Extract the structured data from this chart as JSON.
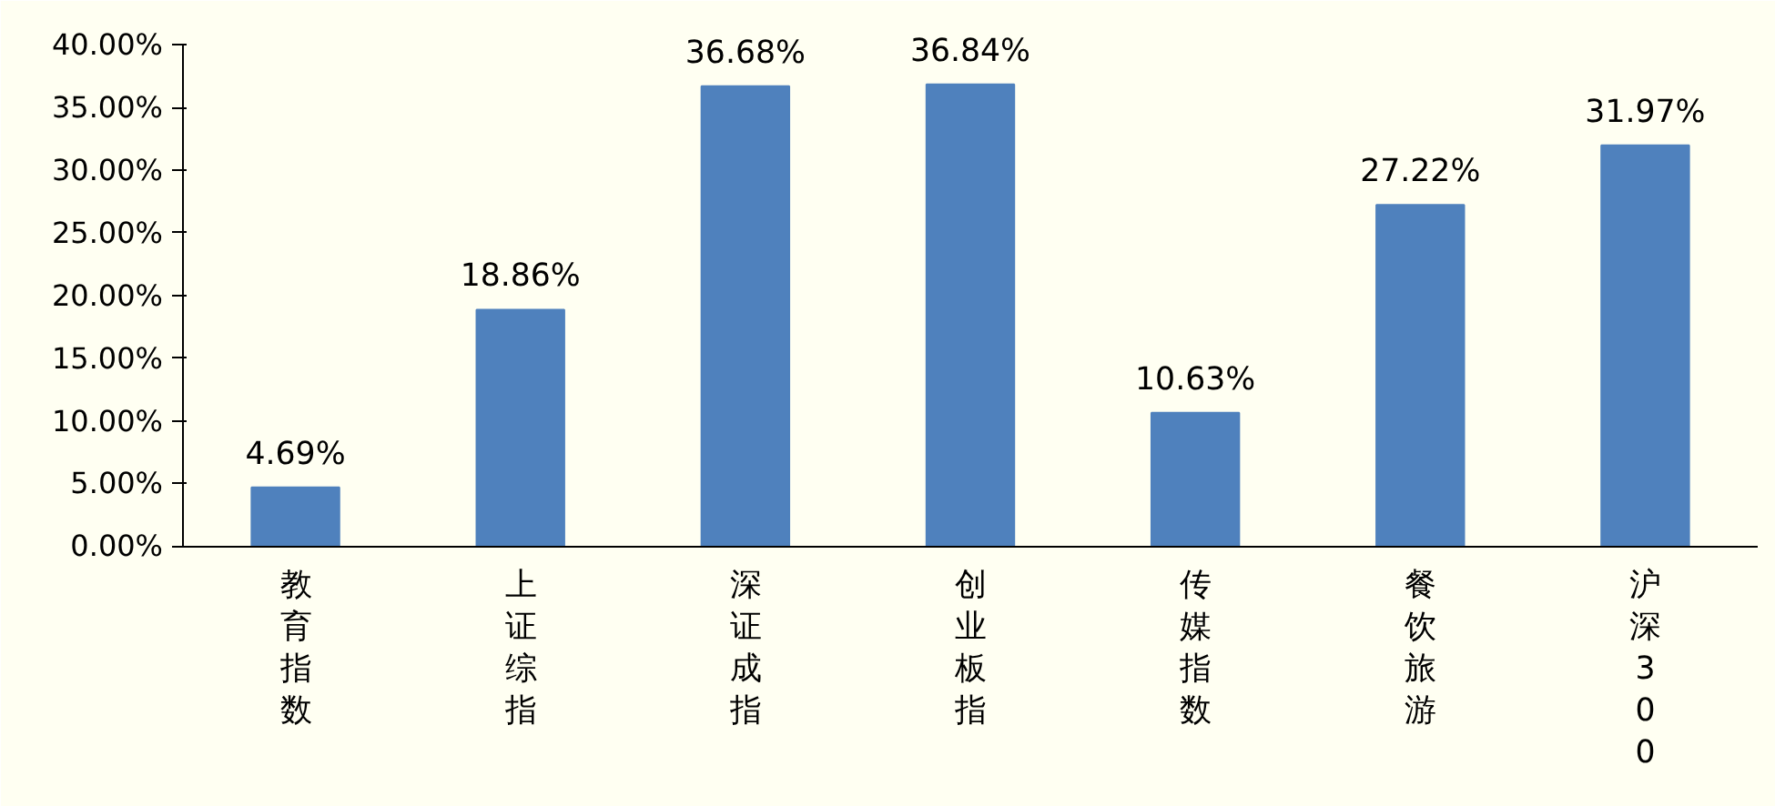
{
  "chart_data": {
    "type": "bar",
    "categories": [
      "教育指数",
      "上证综指",
      "深证成指",
      "创业板指",
      "传媒指数",
      "餐饮旅游",
      "沪深300"
    ],
    "values": [
      4.69,
      18.86,
      36.68,
      36.84,
      10.63,
      27.22,
      31.97
    ],
    "value_labels": [
      "4.69%",
      "18.86%",
      "36.68%",
      "36.84%",
      "10.63%",
      "27.22%",
      "31.97%"
    ],
    "color": "#4f81bd",
    "ylim": [
      0,
      40
    ],
    "yticks": [
      {
        "value": 0,
        "label": "0.00%"
      },
      {
        "value": 5,
        "label": "5.00%"
      },
      {
        "value": 10,
        "label": "10.00%"
      },
      {
        "value": 15,
        "label": "15.00%"
      },
      {
        "value": 20,
        "label": "20.00%"
      },
      {
        "value": 25,
        "label": "25.00%"
      },
      {
        "value": 30,
        "label": "30.00%"
      },
      {
        "value": 35,
        "label": "35.00%"
      },
      {
        "value": 40,
        "label": "40.00%"
      }
    ],
    "grid": false
  }
}
